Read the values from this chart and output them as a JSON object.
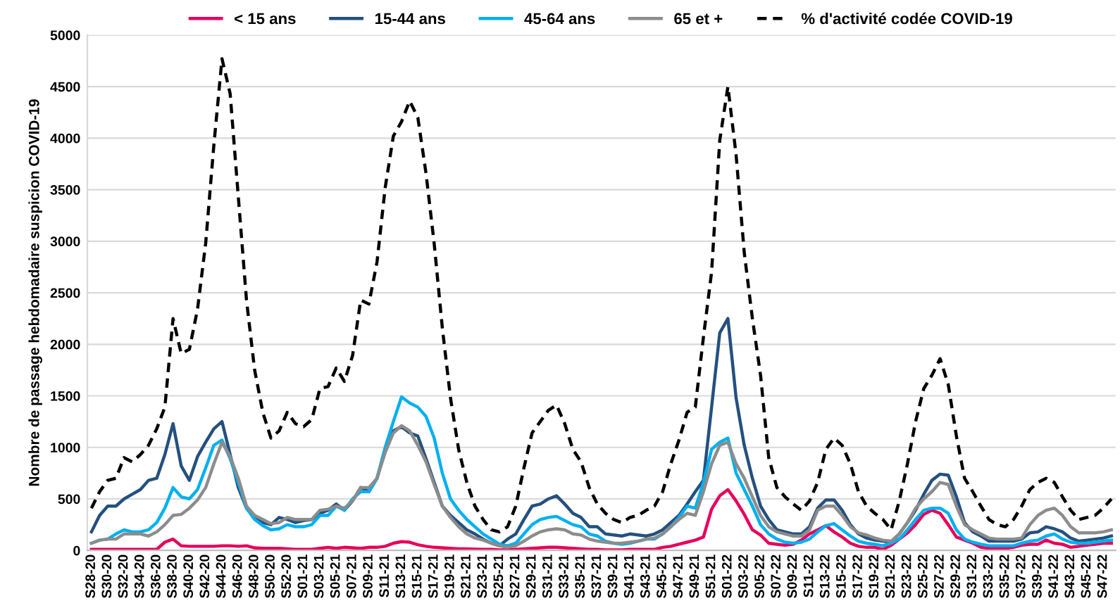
{
  "chart_data": {
    "type": "line",
    "ylabel": "Nombre de passage hebdomadaire suspicion COVID-19",
    "categories": [
      "S28-20",
      null,
      "S30-20",
      null,
      "S32-20",
      null,
      "S34-20",
      null,
      "S36-20",
      null,
      "S38-20",
      null,
      "S40-20",
      null,
      "S42-20",
      null,
      "S44-20",
      null,
      "S46-20",
      null,
      "S48-20",
      null,
      "S50-20",
      null,
      "S52-20",
      null,
      "S01-21",
      null,
      "S03-21",
      null,
      "S05-21",
      null,
      "S07-21",
      null,
      "S09-21",
      null,
      "S11-21",
      null,
      "S13-21",
      null,
      "S15-21",
      null,
      "S17-21",
      null,
      "S19-21",
      null,
      "S21-21",
      null,
      "S23-21",
      null,
      "S25-21",
      null,
      "S27-21",
      null,
      "S29-21",
      null,
      "S31-21",
      null,
      "S33-21",
      null,
      "S35-21",
      null,
      "S37-21",
      null,
      "S39-21",
      null,
      "S41-21",
      null,
      "S43-21",
      null,
      "S45-21",
      null,
      "S47-21",
      null,
      "S49-21",
      null,
      "S51-21",
      null,
      "S01-22",
      null,
      "S03-22",
      null,
      "S05-22",
      null,
      "S07-22",
      null,
      "S09-22",
      null,
      "S11-22",
      null,
      "S13-22",
      null,
      "S15-22",
      null,
      "S17-22",
      null,
      "S19-22",
      null,
      "S21-22",
      null,
      "S23-22",
      null,
      "S25-22",
      null,
      "S27-22",
      null,
      "S29-22",
      null,
      "S31-22",
      null,
      "S33-22",
      null,
      "S35-22",
      null,
      "S37-22",
      null,
      "S39-22",
      null,
      "S41-22",
      null,
      "S43-22",
      null,
      "S45-22",
      null,
      "S47-22",
      null
    ],
    "series": [
      {
        "name": "< 15 ans",
        "color": "#e6005c",
        "values": [
          10,
          10,
          10,
          10,
          10,
          10,
          10,
          10,
          10,
          80,
          110,
          45,
          40,
          40,
          40,
          40,
          45,
          45,
          40,
          45,
          25,
          20,
          20,
          20,
          15,
          10,
          10,
          10,
          20,
          30,
          20,
          30,
          25,
          20,
          30,
          30,
          40,
          70,
          85,
          80,
          55,
          40,
          30,
          25,
          20,
          15,
          15,
          12,
          10,
          10,
          5,
          5,
          10,
          15,
          20,
          25,
          30,
          30,
          25,
          20,
          15,
          10,
          10,
          5,
          5,
          5,
          10,
          10,
          10,
          10,
          30,
          40,
          60,
          80,
          100,
          130,
          400,
          530,
          590,
          480,
          350,
          200,
          150,
          70,
          60,
          50,
          60,
          100,
          160,
          200,
          240,
          180,
          130,
          70,
          40,
          30,
          30,
          10,
          50,
          110,
          170,
          250,
          350,
          390,
          360,
          250,
          130,
          100,
          70,
          30,
          20,
          20,
          20,
          30,
          50,
          60,
          60,
          100,
          70,
          60,
          30,
          40,
          50,
          60,
          70,
          70
        ]
      },
      {
        "name": "15-44 ans",
        "color": "#24507f",
        "values": [
          180,
          340,
          430,
          430,
          500,
          545,
          590,
          680,
          700,
          930,
          1230,
          820,
          680,
          910,
          1050,
          1180,
          1250,
          930,
          610,
          410,
          320,
          270,
          250,
          320,
          300,
          270,
          290,
          300,
          360,
          390,
          450,
          390,
          480,
          610,
          570,
          700,
          980,
          1160,
          1200,
          1140,
          1110,
          890,
          660,
          430,
          340,
          270,
          200,
          160,
          110,
          70,
          45,
          110,
          160,
          300,
          430,
          450,
          500,
          530,
          450,
          360,
          320,
          230,
          230,
          160,
          150,
          140,
          160,
          150,
          140,
          160,
          200,
          270,
          340,
          450,
          570,
          680,
          1390,
          2110,
          2250,
          1480,
          1020,
          700,
          430,
          300,
          200,
          180,
          160,
          160,
          230,
          410,
          490,
          490,
          390,
          250,
          160,
          120,
          100,
          90,
          80,
          160,
          270,
          390,
          545,
          680,
          740,
          730,
          520,
          270,
          180,
          140,
          90,
          90,
          90,
          90,
          110,
          170,
          180,
          230,
          210,
          180,
          120,
          90,
          100,
          110,
          120,
          140
        ]
      },
      {
        "name": "45-64 ans",
        "color": "#00b0f0",
        "values": [
          70,
          100,
          110,
          160,
          200,
          180,
          180,
          200,
          270,
          410,
          610,
          520,
          500,
          590,
          800,
          1020,
          1070,
          890,
          660,
          410,
          300,
          240,
          200,
          210,
          250,
          230,
          230,
          250,
          340,
          340,
          430,
          390,
          500,
          570,
          570,
          700,
          1000,
          1250,
          1490,
          1430,
          1390,
          1300,
          1090,
          750,
          500,
          390,
          300,
          230,
          160,
          110,
          60,
          45,
          70,
          160,
          250,
          300,
          320,
          330,
          290,
          250,
          230,
          160,
          140,
          90,
          70,
          60,
          70,
          90,
          110,
          110,
          160,
          230,
          320,
          430,
          410,
          660,
          980,
          1050,
          1090,
          750,
          590,
          430,
          250,
          160,
          110,
          80,
          70,
          80,
          110,
          180,
          240,
          260,
          200,
          140,
          90,
          70,
          60,
          45,
          70,
          110,
          200,
          300,
          390,
          410,
          410,
          360,
          200,
          110,
          80,
          60,
          45,
          45,
          45,
          45,
          70,
          90,
          100,
          140,
          160,
          110,
          80,
          70,
          70,
          80,
          90,
          100
        ]
      },
      {
        "name": "65 et +",
        "color": "#8c8c8c",
        "values": [
          70,
          100,
          110,
          110,
          160,
          160,
          160,
          140,
          180,
          250,
          340,
          350,
          410,
          490,
          610,
          840,
          1050,
          910,
          700,
          430,
          340,
          300,
          260,
          270,
          320,
          300,
          300,
          300,
          390,
          400,
          430,
          410,
          480,
          610,
          610,
          700,
          950,
          1140,
          1210,
          1160,
          1020,
          860,
          640,
          430,
          320,
          230,
          160,
          120,
          100,
          70,
          45,
          30,
          45,
          90,
          140,
          180,
          200,
          210,
          200,
          160,
          150,
          110,
          90,
          80,
          70,
          70,
          80,
          90,
          110,
          120,
          160,
          230,
          300,
          360,
          340,
          570,
          840,
          1020,
          1050,
          840,
          700,
          520,
          340,
          230,
          180,
          160,
          140,
          140,
          200,
          390,
          430,
          430,
          340,
          230,
          170,
          150,
          120,
          100,
          90,
          160,
          270,
          410,
          500,
          570,
          660,
          640,
          430,
          250,
          200,
          160,
          120,
          110,
          110,
          110,
          120,
          250,
          340,
          390,
          410,
          340,
          230,
          170,
          170,
          170,
          180,
          200
        ]
      },
      {
        "name": "% d'activité codée COVID-19",
        "color": "#000000",
        "line_style": "dashed",
        "values": [
          410,
          570,
          680,
          700,
          900,
          860,
          930,
          1020,
          1180,
          1390,
          2250,
          1910,
          1950,
          2340,
          2980,
          3930,
          4770,
          4430,
          3430,
          2430,
          1750,
          1340,
          1090,
          1160,
          1340,
          1230,
          1200,
          1270,
          1570,
          1590,
          1770,
          1640,
          1890,
          2430,
          2390,
          2800,
          3520,
          4020,
          4160,
          4360,
          4200,
          3660,
          2980,
          2160,
          1480,
          980,
          660,
          430,
          300,
          200,
          180,
          230,
          430,
          800,
          1140,
          1250,
          1360,
          1410,
          1230,
          980,
          860,
          610,
          450,
          360,
          300,
          270,
          320,
          340,
          390,
          430,
          570,
          840,
          1070,
          1340,
          1390,
          2070,
          2700,
          3980,
          4500,
          3840,
          2890,
          2250,
          1700,
          900,
          610,
          520,
          450,
          390,
          480,
          660,
          980,
          1090,
          1020,
          840,
          570,
          430,
          360,
          300,
          200,
          480,
          840,
          1250,
          1570,
          1700,
          1860,
          1610,
          1110,
          700,
          570,
          430,
          300,
          250,
          230,
          300,
          430,
          590,
          660,
          700,
          660,
          520,
          390,
          300,
          320,
          340,
          410,
          500
        ]
      }
    ],
    "ylim": [
      0,
      5000
    ],
    "yticks": [
      0,
      500,
      1000,
      1500,
      2000,
      2500,
      3000,
      3500,
      4000,
      4500,
      5000
    ],
    "grid": "y",
    "legend": "top",
    "line_style": "solid",
    "marker": "none"
  }
}
